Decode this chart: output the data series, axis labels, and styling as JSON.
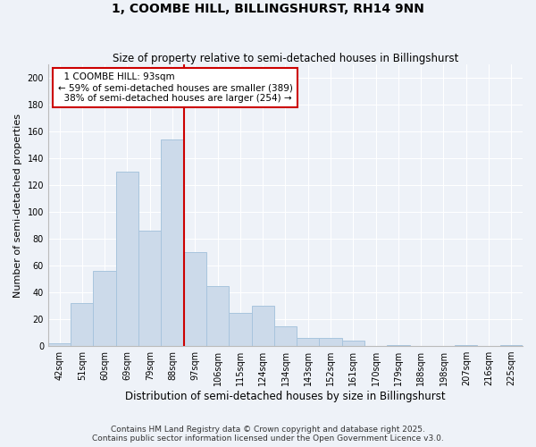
{
  "title": "1, COOMBE HILL, BILLINGSHURST, RH14 9NN",
  "subtitle": "Size of property relative to semi-detached houses in Billingshurst",
  "xlabel": "Distribution of semi-detached houses by size in Billingshurst",
  "ylabel": "Number of semi-detached properties",
  "categories": [
    "42sqm",
    "51sqm",
    "60sqm",
    "69sqm",
    "79sqm",
    "88sqm",
    "97sqm",
    "106sqm",
    "115sqm",
    "124sqm",
    "134sqm",
    "143sqm",
    "152sqm",
    "161sqm",
    "170sqm",
    "179sqm",
    "188sqm",
    "198sqm",
    "207sqm",
    "216sqm",
    "225sqm"
  ],
  "values": [
    2,
    32,
    56,
    130,
    86,
    154,
    70,
    45,
    25,
    30,
    15,
    6,
    6,
    4,
    0,
    1,
    0,
    0,
    1,
    0,
    1
  ],
  "bar_color": "#ccdaea",
  "bar_edge_color": "#a8c4dd",
  "vline_x": 5.5,
  "property_label": "1 COOMBE HILL: 93sqm",
  "smaller_pct": "59%",
  "smaller_count": "389",
  "larger_pct": "38%",
  "larger_count": "254",
  "ann_box_facecolor": "#ffffff",
  "ann_box_edgecolor": "#cc0000",
  "vline_color": "#cc0000",
  "ylim": [
    0,
    210
  ],
  "yticks": [
    0,
    20,
    40,
    60,
    80,
    100,
    120,
    140,
    160,
    180,
    200
  ],
  "footer": "Contains HM Land Registry data © Crown copyright and database right 2025.\nContains public sector information licensed under the Open Government Licence v3.0.",
  "bg_color": "#eef2f8",
  "grid_color": "#ffffff"
}
